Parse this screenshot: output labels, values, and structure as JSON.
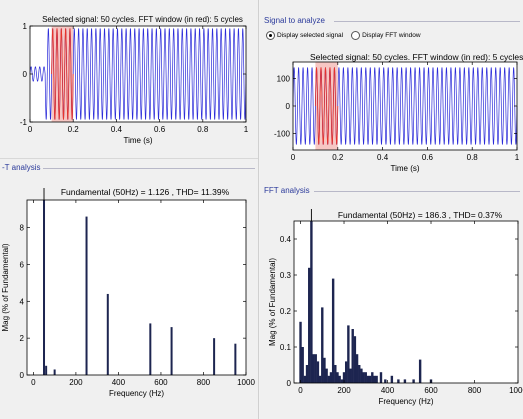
{
  "left": {
    "signal_title": "Selected signal: 50 cycles. FFT window (in red): 5 cycles",
    "fft_group_label": "-T analysis",
    "fft_title": "Fundamental (50Hz) = 1.126 , THD= 11.39%"
  },
  "right": {
    "signal_group_label": "Signal to analyze",
    "radio_selected_label": "Display selected signal",
    "radio_fft_label": "Display FFT window",
    "signal_title": "Selected signal: 50 cycles. FFT window (in red): 5 cycles",
    "fft_group_label": "FFT analysis",
    "fft_title": "Fundamental (50Hz) = 186.3 , THD= 0.37%"
  },
  "chart_data": [
    {
      "type": "line",
      "name": "left-signal",
      "xlabel": "Time (s)",
      "ylabel": "",
      "xlim": [
        0,
        1
      ],
      "ylim": [
        -1,
        1
      ],
      "xticks": [
        0,
        0.2,
        0.4,
        0.6,
        0.8,
        1
      ],
      "xtick_labels": [
        "0",
        "0.2",
        "0.4",
        "0.6",
        "0.8",
        "1"
      ],
      "yticks": [
        -1,
        0,
        1
      ],
      "ytick_labels": [
        "-1",
        "0",
        "1"
      ],
      "frequency_hz": 50,
      "fft_window": [
        0.1,
        0.2
      ],
      "segments": [
        {
          "from": 0,
          "to": 0.07,
          "amplitude": 0.15
        },
        {
          "from": 0.07,
          "to": 1,
          "amplitude": 0.95
        }
      ],
      "colors": {
        "signal": "#2b2bd9",
        "window": "#e8342b",
        "window_fill": "#f7c7c3"
      }
    },
    {
      "type": "bar",
      "name": "left-fft",
      "xlabel": "Frequency (Hz)",
      "ylabel": "Mag (% of Fundamental)",
      "xlim": [
        -30,
        1000
      ],
      "ylim": [
        0,
        9.5
      ],
      "xticks": [
        0,
        200,
        400,
        600,
        800,
        1000
      ],
      "xtick_labels": [
        "0",
        "200",
        "400",
        "600",
        "800",
        "1000"
      ],
      "yticks": [
        0,
        2,
        4,
        6,
        8
      ],
      "ytick_labels": [
        "0",
        "2",
        "4",
        "6",
        "8"
      ],
      "fundamental_line": 50,
      "x": [
        50,
        60,
        100,
        250,
        350,
        550,
        650,
        850,
        950
      ],
      "values": [
        10,
        0.5,
        0.3,
        8.6,
        4.4,
        2.8,
        2.6,
        2.0,
        1.7
      ],
      "colors": {
        "bar": "#1d2550"
      }
    },
    {
      "type": "line",
      "name": "right-signal",
      "xlabel": "Time (s)",
      "ylabel": "",
      "xlim": [
        0,
        1
      ],
      "ylim": [
        -160,
        160
      ],
      "xticks": [
        0,
        0.2,
        0.4,
        0.6,
        0.8,
        1
      ],
      "xtick_labels": [
        "0",
        "0.2",
        "0.4",
        "0.6",
        "0.8",
        "1"
      ],
      "yticks": [
        -100,
        0,
        100
      ],
      "ytick_labels": [
        "-100",
        "0",
        "100"
      ],
      "frequency_hz": 50,
      "fft_window": [
        0.1,
        0.2
      ],
      "segments": [
        {
          "from": 0,
          "to": 1,
          "amplitude": 140
        }
      ],
      "colors": {
        "signal": "#2b2bd9",
        "window": "#e8342b",
        "window_fill": "#f7c7c3"
      }
    },
    {
      "type": "bar",
      "name": "right-fft",
      "xlabel": "Frequency (Hz)",
      "ylabel": "Mag (% of Fundamental)",
      "xlim": [
        -30,
        1000
      ],
      "ylim": [
        0,
        0.45
      ],
      "xticks": [
        0,
        200,
        400,
        600,
        800,
        1000
      ],
      "xtick_labels": [
        "0",
        "200",
        "400",
        "600",
        "800",
        "1000"
      ],
      "yticks": [
        0,
        0.1,
        0.2,
        0.3,
        0.4
      ],
      "ytick_labels": [
        "0",
        "0.1",
        "0.2",
        "0.3",
        "0.4"
      ],
      "fundamental_line": 50,
      "x": [
        0,
        10,
        20,
        30,
        40,
        50,
        60,
        70,
        80,
        90,
        100,
        110,
        120,
        130,
        140,
        150,
        160,
        170,
        180,
        190,
        200,
        210,
        220,
        230,
        240,
        250,
        260,
        270,
        280,
        290,
        300,
        310,
        320,
        330,
        340,
        350,
        370,
        390,
        420,
        450,
        480,
        520,
        550,
        600
      ],
      "values": [
        0.17,
        0.1,
        0.02,
        0.05,
        0.32,
        0.46,
        0.08,
        0.08,
        0.06,
        0.02,
        0.21,
        0.07,
        0.04,
        0.02,
        0.03,
        0.29,
        0.05,
        0.03,
        0.02,
        0.01,
        0.03,
        0.06,
        0.16,
        0.04,
        0.15,
        0.13,
        0.08,
        0.05,
        0.04,
        0.03,
        0.03,
        0.02,
        0.02,
        0.03,
        0.02,
        0.02,
        0.03,
        0.01,
        0.02,
        0.01,
        0.01,
        0.01,
        0.065,
        0.01
      ],
      "colors": {
        "bar": "#1d2550"
      }
    }
  ]
}
